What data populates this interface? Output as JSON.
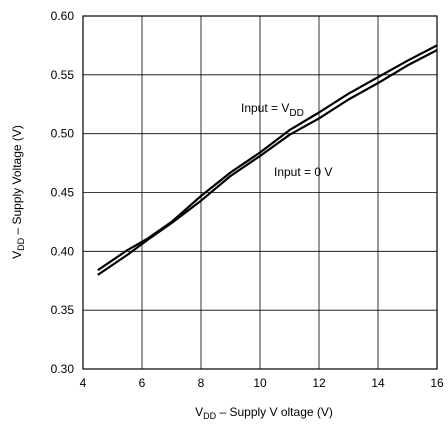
{
  "chart_data": {
    "type": "line",
    "title": "",
    "xlabel": {
      "main": "V",
      "sub": "DD",
      "rest": " – Supply V oltage (V)"
    },
    "ylabel": {
      "main": "V",
      "sub": "DD",
      "rest": " – Supply Voltage (V)"
    },
    "xlim": [
      4,
      16
    ],
    "ylim": [
      0.3,
      0.6
    ],
    "xticks": [
      "4",
      "6",
      "8",
      "10",
      "12",
      "14",
      "16"
    ],
    "yticks": [
      "0.30",
      "0.35",
      "0.40",
      "0.45",
      "0.50",
      "0.55",
      "0.60"
    ],
    "grid": true,
    "series": [
      {
        "name": {
          "main": "Input = V",
          "sub": "DD"
        },
        "x": [
          4.5,
          5.5,
          6.2,
          7.0,
          8.0,
          9.0,
          10.0,
          11.0,
          12.0,
          13.0,
          14.0,
          15.0,
          16.0
        ],
        "y": [
          0.384,
          0.401,
          0.411,
          0.425,
          0.447,
          0.467,
          0.484,
          0.503,
          0.518,
          0.534,
          0.548,
          0.562,
          0.575
        ]
      },
      {
        "name": {
          "main": "Input = 0 V",
          "sub": ""
        },
        "x": [
          4.5,
          5.5,
          6.2,
          7.0,
          8.0,
          9.0,
          10.0,
          11.0,
          12.0,
          13.0,
          14.0,
          15.0,
          16.0
        ],
        "y": [
          0.38,
          0.397,
          0.41,
          0.424,
          0.443,
          0.464,
          0.481,
          0.499,
          0.513,
          0.529,
          0.543,
          0.558,
          0.571
        ]
      }
    ]
  }
}
